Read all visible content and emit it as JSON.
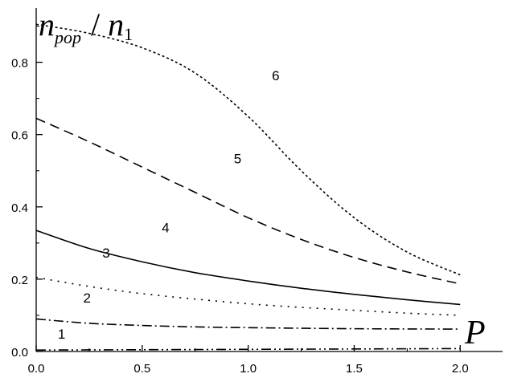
{
  "chart_data": {
    "type": "line",
    "xlabel": "P",
    "ylabel": {
      "n1": "n",
      "sub1": "pop",
      "slash": "/",
      "n2": "n",
      "sub2": "1"
    },
    "xlim": [
      0,
      2.2
    ],
    "ylim": [
      0,
      0.95
    ],
    "x_ticks": [
      "0.0",
      "0.5",
      "1.0",
      "1.5",
      "2.0"
    ],
    "y_ticks": [
      "0.0",
      "0.2",
      "0.4",
      "0.6",
      "0.8"
    ],
    "grid": false,
    "series": [
      {
        "name": "1",
        "style": "dashdotdot",
        "points": [
          [
            0,
            0.004
          ],
          [
            0.5,
            0.005
          ],
          [
            1.0,
            0.006
          ],
          [
            1.5,
            0.007
          ],
          [
            2.0,
            0.008
          ]
        ]
      },
      {
        "name": "2",
        "style": "dashdot",
        "points": [
          [
            0,
            0.09
          ],
          [
            0.25,
            0.078
          ],
          [
            0.5,
            0.072
          ],
          [
            0.75,
            0.068
          ],
          [
            1.0,
            0.066
          ],
          [
            1.5,
            0.063
          ],
          [
            2.0,
            0.062
          ]
        ]
      },
      {
        "name": "3",
        "style": "dotted",
        "points": [
          [
            0,
            0.205
          ],
          [
            0.25,
            0.18
          ],
          [
            0.5,
            0.16
          ],
          [
            0.75,
            0.145
          ],
          [
            1.0,
            0.132
          ],
          [
            1.25,
            0.122
          ],
          [
            1.5,
            0.114
          ],
          [
            1.75,
            0.106
          ],
          [
            2.0,
            0.1
          ]
        ]
      },
      {
        "name": "4",
        "style": "solid",
        "points": [
          [
            0,
            0.335
          ],
          [
            0.25,
            0.285
          ],
          [
            0.5,
            0.248
          ],
          [
            0.75,
            0.218
          ],
          [
            1.0,
            0.195
          ],
          [
            1.25,
            0.175
          ],
          [
            1.5,
            0.158
          ],
          [
            1.75,
            0.143
          ],
          [
            2.0,
            0.13
          ]
        ]
      },
      {
        "name": "5",
        "style": "dashed",
        "points": [
          [
            0,
            0.645
          ],
          [
            0.25,
            0.58
          ],
          [
            0.5,
            0.51
          ],
          [
            0.75,
            0.44
          ],
          [
            1.0,
            0.37
          ],
          [
            1.25,
            0.31
          ],
          [
            1.5,
            0.26
          ],
          [
            1.75,
            0.22
          ],
          [
            2.0,
            0.187
          ]
        ]
      },
      {
        "name": "6",
        "style": "densedot",
        "points": [
          [
            0,
            0.905
          ],
          [
            0.25,
            0.88
          ],
          [
            0.5,
            0.84
          ],
          [
            0.75,
            0.77
          ],
          [
            1.0,
            0.65
          ],
          [
            1.25,
            0.5
          ],
          [
            1.5,
            0.37
          ],
          [
            1.75,
            0.275
          ],
          [
            2.0,
            0.212
          ]
        ]
      }
    ],
    "curve_labels": [
      {
        "text": "1",
        "x": 0.12,
        "y": 0.035
      },
      {
        "text": "2",
        "x": 0.24,
        "y": 0.135
      },
      {
        "text": "3",
        "x": 0.33,
        "y": 0.26
      },
      {
        "text": "4",
        "x": 0.61,
        "y": 0.33
      },
      {
        "text": "5",
        "x": 0.95,
        "y": 0.52
      },
      {
        "text": "6",
        "x": 1.13,
        "y": 0.75
      }
    ]
  }
}
